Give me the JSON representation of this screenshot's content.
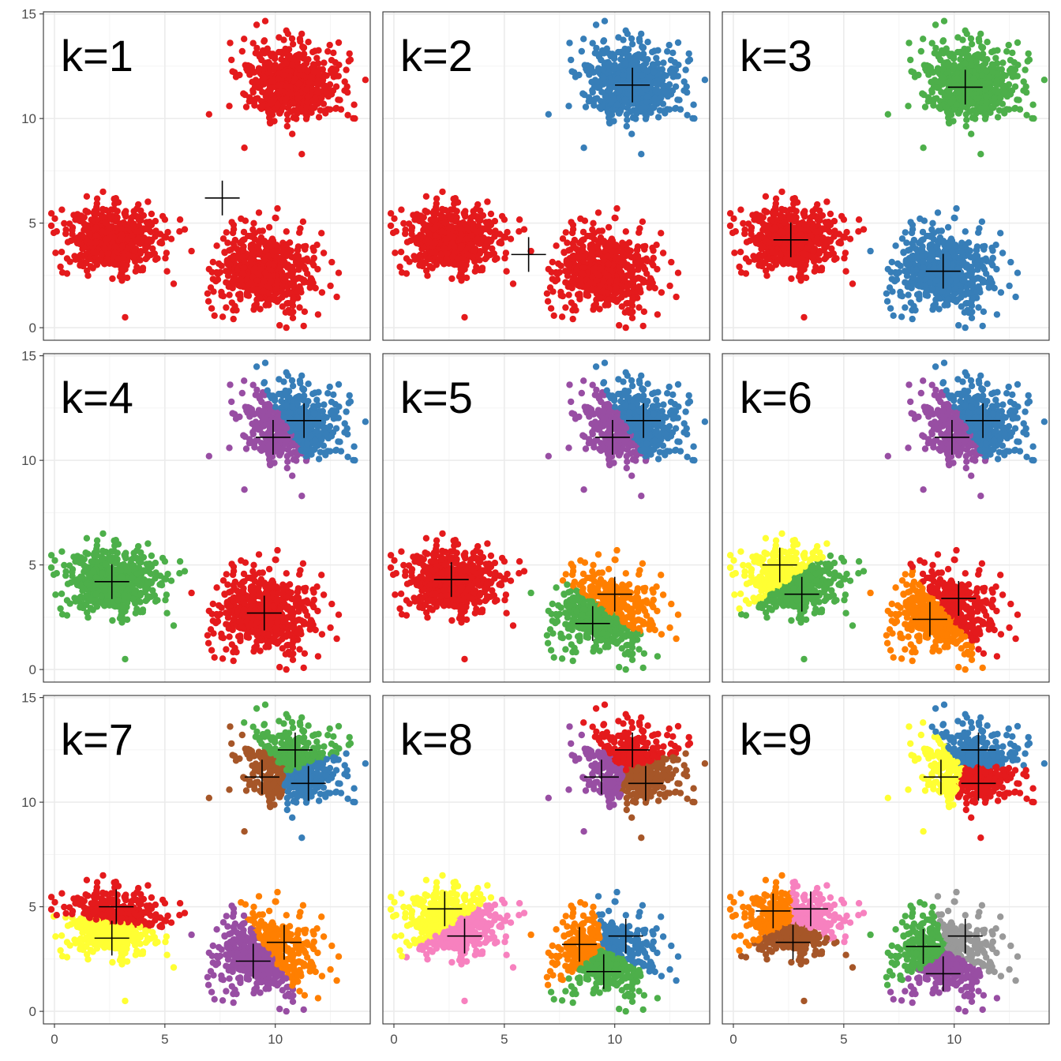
{
  "chart_data": {
    "type": "scatter",
    "layout": "3x3 facet grid",
    "grid": true,
    "x_ticks": [
      0,
      5,
      10
    ],
    "y_ticks": [
      0,
      5,
      10,
      15
    ],
    "xlim": [
      -0.5,
      14.3
    ],
    "ylim": [
      -0.6,
      15.1
    ],
    "blobs": [
      {
        "name": "lower-left",
        "center": [
          2.6,
          4.2
        ],
        "sd": [
          1.05,
          0.75
        ],
        "n": 600,
        "extremes": [
          [
            0.1,
            4.6
          ],
          [
            2.2,
            6.5
          ],
          [
            3.2,
            0.5
          ],
          [
            5.9,
            4.7
          ],
          [
            5.4,
            2.1
          ]
        ]
      },
      {
        "name": "lower-right",
        "center": [
          9.5,
          2.7
        ],
        "sd": [
          1.05,
          0.9
        ],
        "n": 650,
        "extremes": [
          [
            10.1,
            5.7
          ],
          [
            10.5,
            0.0
          ],
          [
            12.5,
            2.0
          ],
          [
            7.0,
            2.8
          ]
        ]
      },
      {
        "name": "top",
        "center": [
          10.8,
          11.7
        ],
        "sd": [
          1.05,
          0.85
        ],
        "n": 650,
        "extremes": [
          [
            7.0,
            10.2
          ],
          [
            8.6,
            8.6
          ],
          [
            11.2,
            8.3
          ],
          [
            13.6,
            10.0
          ],
          [
            9.0,
            13.6
          ],
          [
            10.5,
            14.2
          ]
        ]
      }
    ],
    "palette": {
      "red": "#E41A1C",
      "blue": "#377EB8",
      "green": "#4DAF4A",
      "purple": "#984EA3",
      "orange": "#FF7F00",
      "yellow": "#FFFF33",
      "brown": "#A65628",
      "pink": "#F781BF",
      "grey": "#999999"
    },
    "panels": [
      {
        "title": "k=1",
        "clusters": [
          {
            "color": "red",
            "centroid": [
              7.6,
              6.2
            ],
            "blob": "all"
          }
        ]
      },
      {
        "title": "k=2",
        "clusters": [
          {
            "color": "red",
            "centroid": [
              6.1,
              3.5
            ],
            "blob": "lower-left"
          },
          {
            "color": "red",
            "centroid": [
              6.1,
              3.5
            ],
            "blob": "lower-right"
          },
          {
            "color": "blue",
            "centroid": [
              10.8,
              11.6
            ],
            "blob": "top"
          }
        ]
      },
      {
        "title": "k=3",
        "clusters": [
          {
            "color": "red",
            "centroid": [
              2.6,
              4.2
            ],
            "blob": "lower-left"
          },
          {
            "color": "blue",
            "centroid": [
              9.5,
              2.7
            ],
            "blob": "lower-right"
          },
          {
            "color": "green",
            "centroid": [
              10.5,
              11.5
            ],
            "blob": "top"
          }
        ]
      },
      {
        "title": "k=4",
        "clusters": [
          {
            "color": "green",
            "centroid": [
              2.6,
              4.2
            ],
            "blob": "lower-left"
          },
          {
            "color": "red",
            "centroid": [
              9.5,
              2.7
            ],
            "blob": "lower-right"
          },
          {
            "color": "purple",
            "centroid": [
              9.9,
              11.1
            ],
            "blob": "top"
          },
          {
            "color": "blue",
            "centroid": [
              11.3,
              11.9
            ],
            "blob": "top"
          }
        ]
      },
      {
        "title": "k=5",
        "clusters": [
          {
            "color": "red",
            "centroid": [
              2.6,
              4.3
            ],
            "blob": "lower-left"
          },
          {
            "color": "orange",
            "centroid": [
              10.0,
              3.6
            ],
            "blob": "lower-right"
          },
          {
            "color": "green",
            "centroid": [
              9.0,
              2.2
            ],
            "blob": "lower-right"
          },
          {
            "color": "purple",
            "centroid": [
              9.9,
              11.1
            ],
            "blob": "top"
          },
          {
            "color": "blue",
            "centroid": [
              11.3,
              11.9
            ],
            "blob": "top"
          }
        ]
      },
      {
        "title": "k=6",
        "clusters": [
          {
            "color": "yellow",
            "centroid": [
              2.1,
              5.0
            ],
            "blob": "lower-left"
          },
          {
            "color": "green",
            "centroid": [
              3.1,
              3.6
            ],
            "blob": "lower-left"
          },
          {
            "color": "red",
            "centroid": [
              10.2,
              3.4
            ],
            "blob": "lower-right"
          },
          {
            "color": "orange",
            "centroid": [
              8.9,
              2.4
            ],
            "blob": "lower-right"
          },
          {
            "color": "purple",
            "centroid": [
              9.9,
              11.1
            ],
            "blob": "top"
          },
          {
            "color": "blue",
            "centroid": [
              11.3,
              11.9
            ],
            "blob": "top"
          }
        ]
      },
      {
        "title": "k=7",
        "clusters": [
          {
            "color": "red",
            "centroid": [
              2.8,
              5.0
            ],
            "blob": "lower-left"
          },
          {
            "color": "yellow",
            "centroid": [
              2.6,
              3.5
            ],
            "blob": "lower-left"
          },
          {
            "color": "purple",
            "centroid": [
              9.0,
              2.4
            ],
            "blob": "lower-right"
          },
          {
            "color": "orange",
            "centroid": [
              10.4,
              3.3
            ],
            "blob": "lower-right"
          },
          {
            "color": "green",
            "centroid": [
              10.9,
              12.5
            ],
            "blob": "top"
          },
          {
            "color": "brown",
            "centroid": [
              9.4,
              11.2
            ],
            "blob": "top"
          },
          {
            "color": "blue",
            "centroid": [
              11.5,
              10.9
            ],
            "blob": "top"
          }
        ]
      },
      {
        "title": "k=8",
        "clusters": [
          {
            "color": "yellow",
            "centroid": [
              2.3,
              4.9
            ],
            "blob": "lower-left"
          },
          {
            "color": "pink",
            "centroid": [
              3.2,
              3.6
            ],
            "blob": "lower-left"
          },
          {
            "color": "orange",
            "centroid": [
              8.4,
              3.2
            ],
            "blob": "lower-right"
          },
          {
            "color": "blue",
            "centroid": [
              10.5,
              3.6
            ],
            "blob": "lower-right"
          },
          {
            "color": "green",
            "centroid": [
              9.5,
              1.9
            ],
            "blob": "lower-right"
          },
          {
            "color": "red",
            "centroid": [
              10.8,
              12.5
            ],
            "blob": "top"
          },
          {
            "color": "purple",
            "centroid": [
              9.4,
              11.2
            ],
            "blob": "top"
          },
          {
            "color": "brown",
            "centroid": [
              11.4,
              10.9
            ],
            "blob": "top"
          }
        ]
      },
      {
        "title": "k=9",
        "clusters": [
          {
            "color": "orange",
            "centroid": [
              1.8,
              4.8
            ],
            "blob": "lower-left"
          },
          {
            "color": "pink",
            "centroid": [
              3.5,
              4.9
            ],
            "blob": "lower-left"
          },
          {
            "color": "brown",
            "centroid": [
              2.7,
              3.3
            ],
            "blob": "lower-left"
          },
          {
            "color": "green",
            "centroid": [
              8.6,
              3.1
            ],
            "blob": "lower-right"
          },
          {
            "color": "grey",
            "centroid": [
              10.5,
              3.6
            ],
            "blob": "lower-right"
          },
          {
            "color": "purple",
            "centroid": [
              9.5,
              1.8
            ],
            "blob": "lower-right"
          },
          {
            "color": "yellow",
            "centroid": [
              9.4,
              11.2
            ],
            "blob": "top"
          },
          {
            "color": "blue",
            "centroid": [
              11.1,
              12.5
            ],
            "blob": "top"
          },
          {
            "color": "red",
            "centroid": [
              11.1,
              10.9
            ],
            "blob": "top"
          }
        ]
      }
    ]
  }
}
